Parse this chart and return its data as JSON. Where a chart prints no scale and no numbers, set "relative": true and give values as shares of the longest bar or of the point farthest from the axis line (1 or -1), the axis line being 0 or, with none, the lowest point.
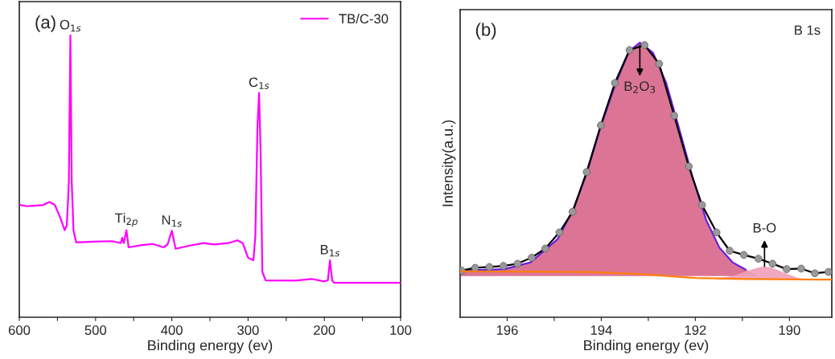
{
  "chart_data": [
    {
      "type": "line",
      "xlabel": "Binding energy (ev)",
      "relative": true,
      "tick_labels": "x",
      "legend": "top right",
      "xlim": [
        600,
        100
      ],
      "xticks": [
        600,
        {
          "value": 550,
          "label": null
        },
        500,
        {
          "value": 450,
          "label": null
        },
        400,
        {
          "value": 350,
          "label": null
        },
        300,
        {
          "value": 250,
          "label": null
        },
        200,
        {
          "value": 150,
          "label": null
        },
        100
      ],
      "annotations": [
        "(a)",
        {
          "text": "O$_{1s}$",
          "x": 533,
          "y": 1.0
        },
        {
          "text": "Ti$_{2p}$",
          "x": 459.5,
          "y": 0.309
        },
        {
          "text": "N$_{1s}$",
          "x": 400,
          "y": 0.307
        },
        {
          "text": "C$_{1s}$",
          "x": 285.6,
          "y": 0.796
        },
        {
          "text": "B$_{1s}$",
          "x": 192.6,
          "y": 0.202
        }
      ],
      "series": [
        {
          "name": "TB/C-30",
          "color": "#ff00ff",
          "x": [
            600,
            590.5,
            580,
            569,
            560.6,
            553.5,
            546.5,
            540.5,
            537.7,
            535,
            533,
            531.3,
            528.9,
            525.4,
            520,
            502,
            478,
            467,
            465,
            463,
            459.5,
            456.7,
            439,
            425,
            411,
            405.6,
            400,
            395,
            379,
            358,
            344,
            326,
            314,
            307,
            300,
            293,
            290.5,
            287.7,
            285.6,
            283.5,
            281.3,
            277,
            238,
            217,
            200,
            195.4,
            192.6,
            189.8,
            187.3,
            150,
            100
          ],
          "values": [
            0.399,
            0.394,
            0.396,
            0.398,
            0.409,
            0.399,
            0.355,
            0.309,
            0.326,
            0.482,
            1.0,
            0.482,
            0.307,
            0.266,
            0.266,
            0.268,
            0.27,
            0.263,
            0.282,
            0.263,
            0.309,
            0.248,
            0.256,
            0.26,
            0.248,
            0.258,
            0.307,
            0.243,
            0.253,
            0.263,
            0.258,
            0.263,
            0.273,
            0.263,
            0.211,
            0.202,
            0.287,
            0.677,
            0.796,
            0.579,
            0.161,
            0.131,
            0.13,
            0.136,
            0.127,
            0.131,
            0.202,
            0.131,
            0.122,
            0.122,
            0.122
          ]
        }
      ]
    },
    {
      "type": "line",
      "xlabel": "Binding energy (ev)",
      "ylabel": "Intensity(a.u.)",
      "relative": true,
      "tick_labels": "x",
      "xlim": [
        197,
        189.1
      ],
      "xticks": [
        196,
        {
          "value": 195,
          "label": null
        },
        194,
        {
          "value": 193,
          "label": null
        },
        192,
        {
          "value": 191,
          "label": null
        },
        190
      ],
      "annotations": [
        "(b)",
        "B 1s",
        {
          "text": "B$_{2}$O$_{3}$",
          "x": 193.18,
          "y": 1.0
        },
        {
          "text": "B-O",
          "x": 190.53,
          "y": 0.185
        }
      ],
      "series": [
        {
          "type": "area",
          "color": "#d8668a",
          "x": [
            196.99,
            196.06,
            195.5,
            194.93,
            194.59,
            194.31,
            194.03,
            193.69,
            193.41,
            193.18,
            192.9,
            192.62,
            192.34,
            192.05,
            191.77,
            191.49,
            191.21,
            190.93,
            190.64
          ],
          "values": [
            0.17,
            0.175,
            0.2,
            0.284,
            0.394,
            0.524,
            0.684,
            0.853,
            0.968,
            1.0,
            0.963,
            0.853,
            0.684,
            0.504,
            0.354,
            0.254,
            0.2,
            0.173,
            0.15
          ]
        },
        {
          "type": "area",
          "color": "#f0a0b8",
          "x": [
            191.55,
            191.21,
            190.93,
            190.64,
            190.53,
            190.36,
            190.08,
            189.8,
            189.57
          ],
          "values": [
            0.142,
            0.15,
            0.167,
            0.182,
            0.185,
            0.18,
            0.16,
            0.142,
            0.137
          ]
        },
        {
          "type": "line",
          "color": "#6a20e0",
          "x": [
            196.99,
            196.06,
            195.5,
            194.93,
            194.59,
            194.31,
            194.03,
            193.69,
            193.41,
            193.18,
            192.9,
            192.62,
            192.34,
            192.05,
            191.77,
            191.49,
            191.21,
            190.93
          ],
          "values": [
            0.17,
            0.175,
            0.2,
            0.284,
            0.394,
            0.524,
            0.684,
            0.853,
            0.968,
            1.0,
            0.963,
            0.853,
            0.684,
            0.504,
            0.354,
            0.254,
            0.2,
            0.173
          ]
        },
        {
          "type": "line",
          "color": "#ff7f0e",
          "x": [
            197,
            194.3,
            193.15,
            192.0,
            190.9,
            189.1
          ],
          "values": [
            0.167,
            0.165,
            0.157,
            0.143,
            0.139,
            0.137
          ]
        },
        {
          "type": "line",
          "color": "#000000",
          "x": [
            196.97,
            196.68,
            196.38,
            196.08,
            195.78,
            195.48,
            195.19,
            194.89,
            194.61,
            194.31,
            194.01,
            193.71,
            193.4,
            193.08,
            192.77,
            192.45,
            192.14,
            191.86,
            191.55,
            191.27,
            190.97,
            190.66,
            190.36,
            190.06,
            189.75,
            189.46,
            189.17
          ],
          "values": [
            0.17,
            0.18,
            0.183,
            0.187,
            0.195,
            0.217,
            0.25,
            0.309,
            0.384,
            0.529,
            0.699,
            0.853,
            0.973,
            0.991,
            0.923,
            0.734,
            0.549,
            0.409,
            0.309,
            0.242,
            0.227,
            0.213,
            0.195,
            0.175,
            0.177,
            0.16,
            0.165
          ]
        },
        {
          "type": "scatter",
          "color": "#999999",
          "marker": "circle",
          "x": [
            196.97,
            196.68,
            196.38,
            196.08,
            195.78,
            195.48,
            195.19,
            194.89,
            194.61,
            194.31,
            194.01,
            193.71,
            193.4,
            193.08,
            192.77,
            192.45,
            192.14,
            191.86,
            191.55,
            191.27,
            190.97,
            190.66,
            190.36,
            190.06,
            189.75,
            189.46,
            189.17
          ],
          "values": [
            0.17,
            0.18,
            0.183,
            0.187,
            0.195,
            0.217,
            0.25,
            0.309,
            0.384,
            0.529,
            0.699,
            0.853,
            0.973,
            0.991,
            0.923,
            0.734,
            0.549,
            0.409,
            0.309,
            0.242,
            0.227,
            0.213,
            0.195,
            0.175,
            0.177,
            0.16,
            0.165
          ]
        }
      ]
    }
  ]
}
